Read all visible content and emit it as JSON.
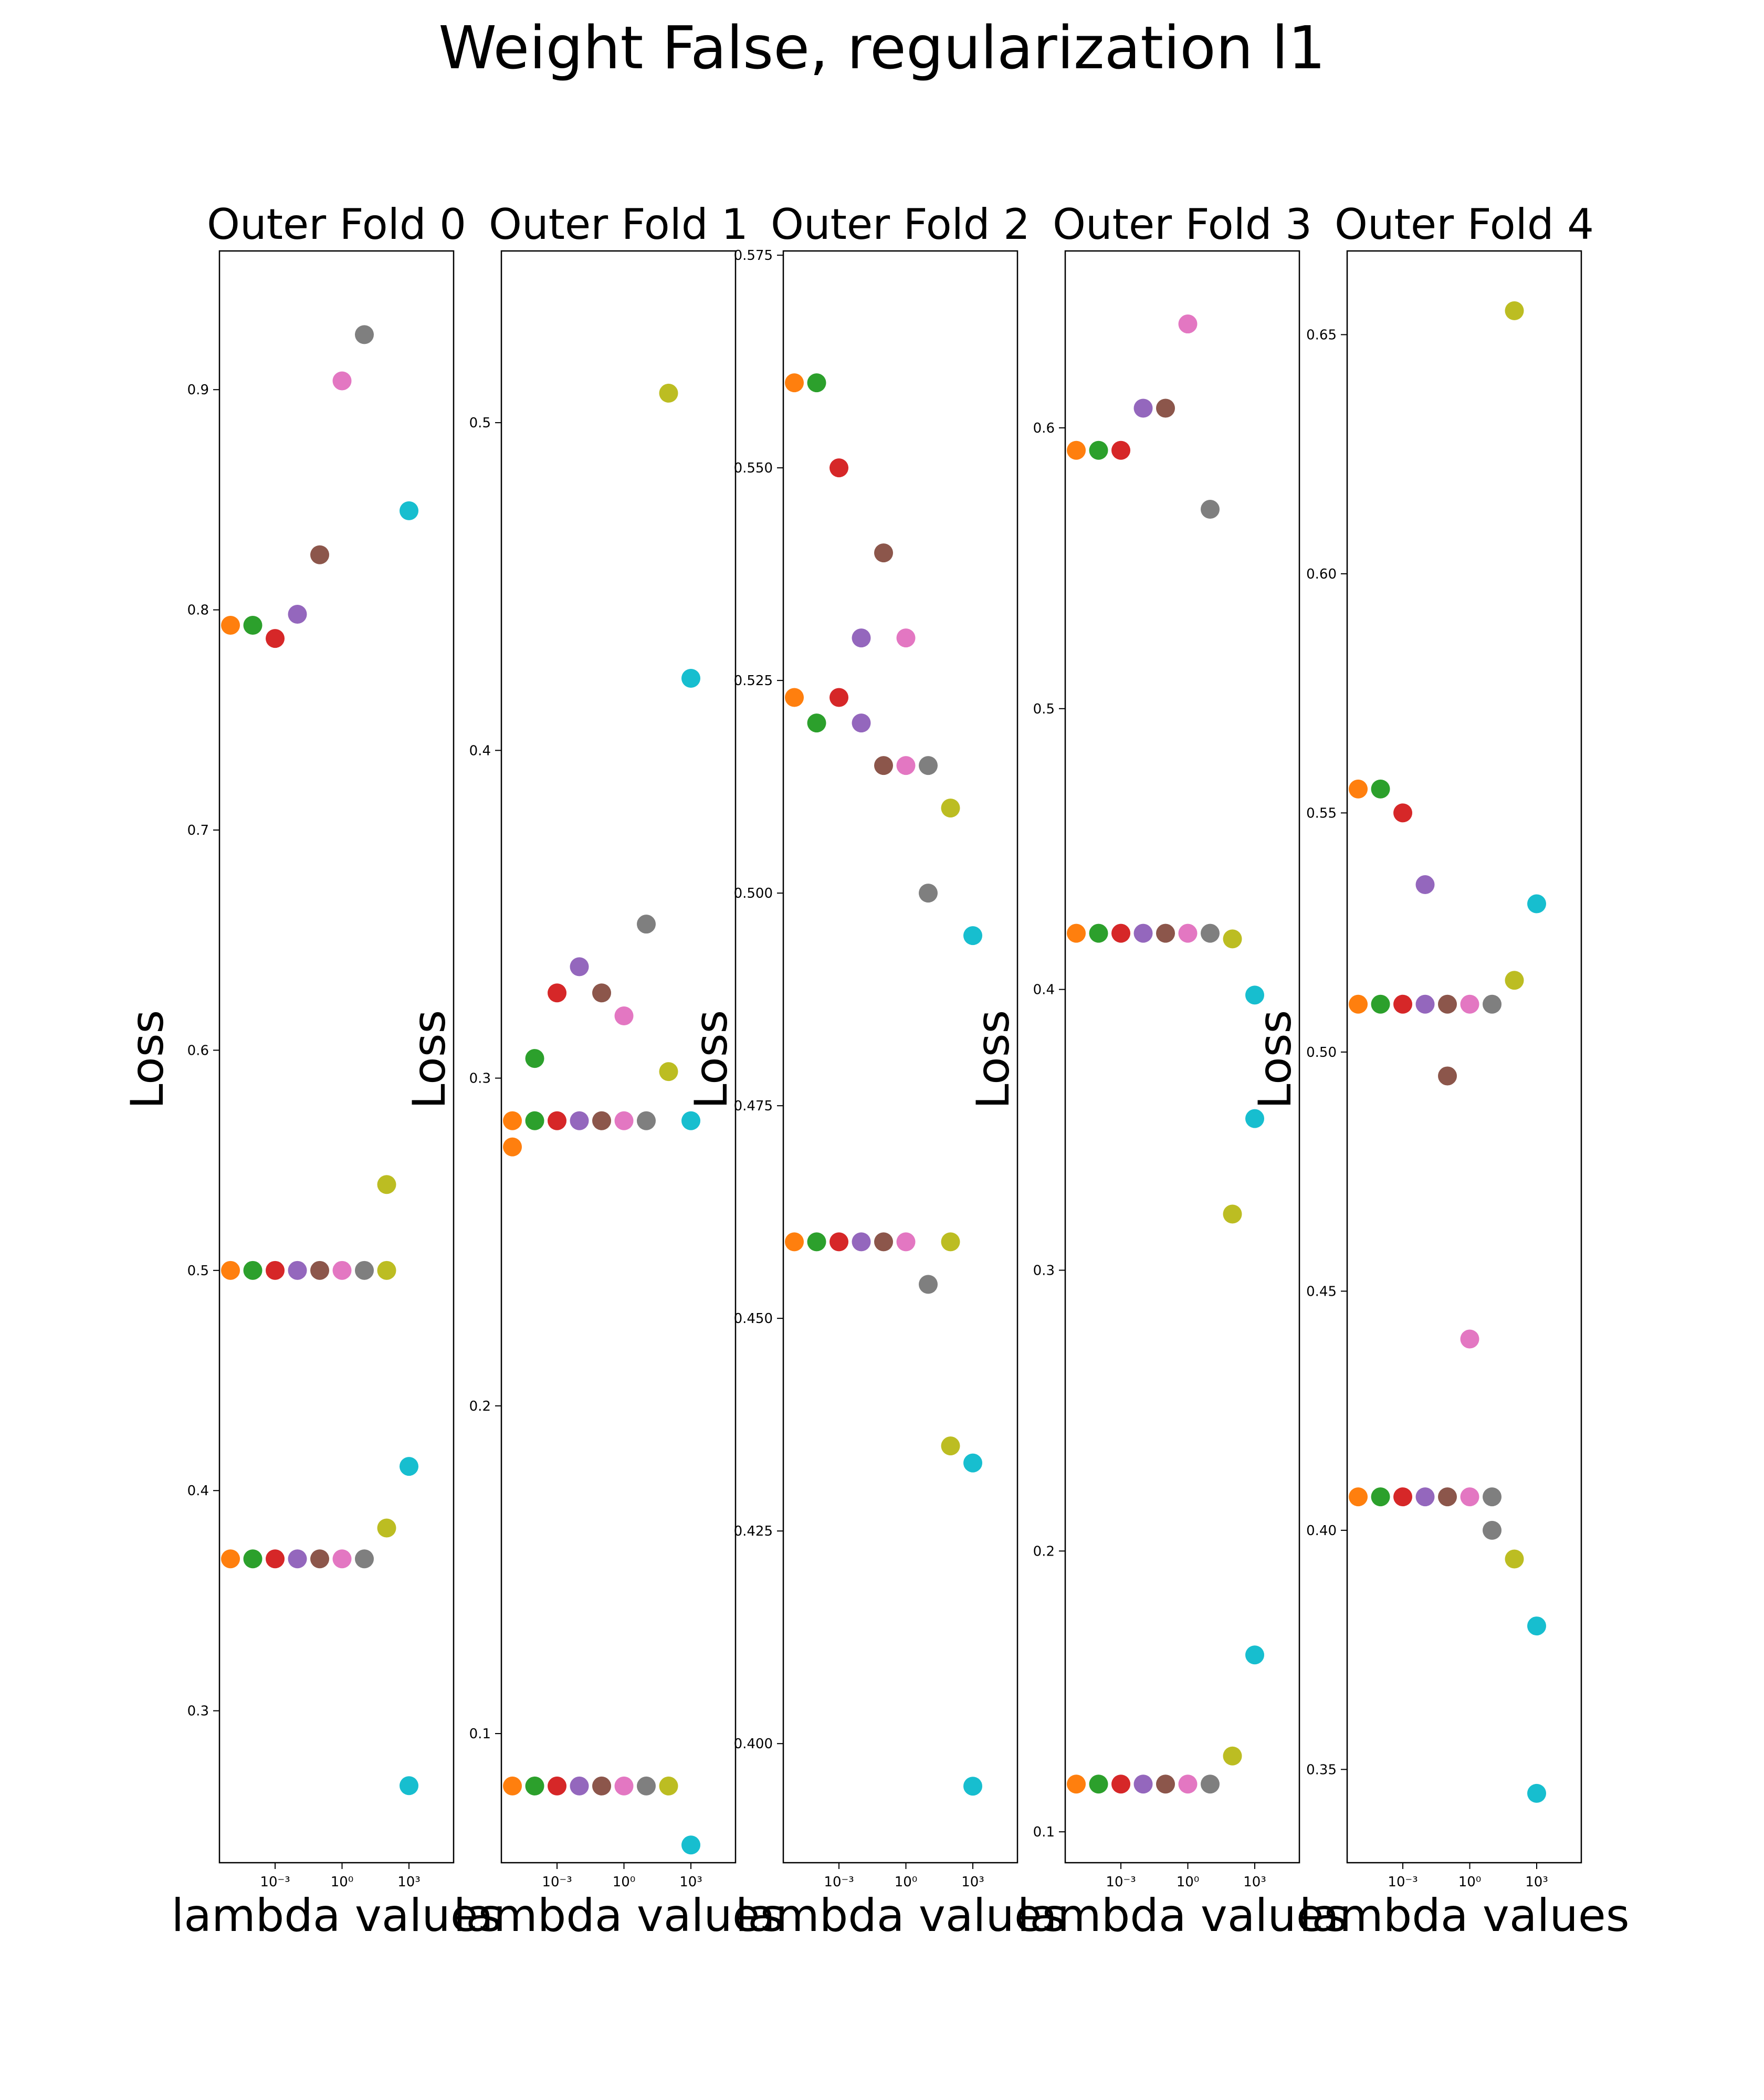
{
  "title": "Weight False, regularization l1",
  "colors": [
    "#ff7f0e",
    "#2ca02c",
    "#d62728",
    "#9467bd",
    "#8c564b",
    "#e377c2",
    "#7f7f7f",
    "#bcbd22",
    "#17becf"
  ],
  "chart_data": [
    {
      "type": "scatter",
      "title": "Outer Fold 0",
      "xlabel": "lambda values",
      "ylabel": "Loss",
      "xscale": "log",
      "xlim": [
        3.2e-06,
        100000.0
      ],
      "ylim": [
        0.231,
        0.963
      ],
      "xticks": [
        {
          "value": 0.001,
          "label": "10⁻³"
        },
        {
          "value": 1,
          "label": "10⁰"
        },
        {
          "value": 1000,
          "label": "10³"
        }
      ],
      "yticks": [
        {
          "value": 0.3,
          "label": "0.3"
        },
        {
          "value": 0.4,
          "label": "0.4"
        },
        {
          "value": 0.5,
          "label": "0.5"
        },
        {
          "value": 0.6,
          "label": "0.6"
        },
        {
          "value": 0.7,
          "label": "0.7"
        },
        {
          "value": 0.8,
          "label": "0.8"
        },
        {
          "value": 0.9,
          "label": "0.9"
        }
      ],
      "points": [
        {
          "x": 1e-05,
          "y": 0.793,
          "color": "#ff7f0e"
        },
        {
          "x": 0.0001,
          "y": 0.793,
          "color": "#2ca02c"
        },
        {
          "x": 0.001,
          "y": 0.787,
          "color": "#d62728"
        },
        {
          "x": 0.01,
          "y": 0.798,
          "color": "#9467bd"
        },
        {
          "x": 0.1,
          "y": 0.825,
          "color": "#8c564b"
        },
        {
          "x": 1,
          "y": 0.904,
          "color": "#e377c2"
        },
        {
          "x": 10,
          "y": 0.925,
          "color": "#7f7f7f"
        },
        {
          "x": 100,
          "y": 0.539,
          "color": "#bcbd22"
        },
        {
          "x": 1000,
          "y": 0.845,
          "color": "#17becf"
        },
        {
          "x": 1e-05,
          "y": 0.5,
          "color": "#ff7f0e"
        },
        {
          "x": 0.0001,
          "y": 0.5,
          "color": "#2ca02c"
        },
        {
          "x": 0.001,
          "y": 0.5,
          "color": "#d62728"
        },
        {
          "x": 0.01,
          "y": 0.5,
          "color": "#9467bd"
        },
        {
          "x": 0.1,
          "y": 0.5,
          "color": "#8c564b"
        },
        {
          "x": 1,
          "y": 0.5,
          "color": "#e377c2"
        },
        {
          "x": 10,
          "y": 0.5,
          "color": "#7f7f7f"
        },
        {
          "x": 100,
          "y": 0.5,
          "color": "#bcbd22"
        },
        {
          "x": 1000,
          "y": 0.411,
          "color": "#17becf"
        },
        {
          "x": 1e-05,
          "y": 0.369,
          "color": "#ff7f0e"
        },
        {
          "x": 0.0001,
          "y": 0.369,
          "color": "#2ca02c"
        },
        {
          "x": 0.001,
          "y": 0.369,
          "color": "#d62728"
        },
        {
          "x": 0.01,
          "y": 0.369,
          "color": "#9467bd"
        },
        {
          "x": 0.1,
          "y": 0.369,
          "color": "#8c564b"
        },
        {
          "x": 1,
          "y": 0.369,
          "color": "#e377c2"
        },
        {
          "x": 10,
          "y": 0.369,
          "color": "#7f7f7f"
        },
        {
          "x": 100,
          "y": 0.383,
          "color": "#bcbd22"
        },
        {
          "x": 1000,
          "y": 0.266,
          "color": "#17becf"
        }
      ]
    },
    {
      "type": "scatter",
      "title": "Outer Fold 1",
      "xlabel": "lambda values",
      "ylabel": "Loss",
      "xscale": "log",
      "xlim": [
        3.2e-06,
        100000.0
      ],
      "ylim": [
        0.0606,
        0.5524
      ],
      "xticks": [
        {
          "value": 0.001,
          "label": "10⁻³"
        },
        {
          "value": 1,
          "label": "10⁰"
        },
        {
          "value": 1000,
          "label": "10³"
        }
      ],
      "yticks": [
        {
          "value": 0.1,
          "label": "0.1"
        },
        {
          "value": 0.2,
          "label": "0.2"
        },
        {
          "value": 0.3,
          "label": "0.3"
        },
        {
          "value": 0.4,
          "label": "0.4"
        },
        {
          "value": 0.5,
          "label": "0.5"
        }
      ],
      "points": [
        {
          "x": 1e-05,
          "y": 0.279,
          "color": "#ff7f0e"
        },
        {
          "x": 0.0001,
          "y": 0.306,
          "color": "#2ca02c"
        },
        {
          "x": 0.001,
          "y": 0.326,
          "color": "#d62728"
        },
        {
          "x": 0.01,
          "y": 0.334,
          "color": "#9467bd"
        },
        {
          "x": 0.1,
          "y": 0.326,
          "color": "#8c564b"
        },
        {
          "x": 1,
          "y": 0.319,
          "color": "#e377c2"
        },
        {
          "x": 10,
          "y": 0.347,
          "color": "#7f7f7f"
        },
        {
          "x": 100,
          "y": 0.302,
          "color": "#bcbd22"
        },
        {
          "x": 1000,
          "y": 0.422,
          "color": "#17becf"
        },
        {
          "x": 1e-05,
          "y": 0.287,
          "color": "#ff7f0e"
        },
        {
          "x": 0.0001,
          "y": 0.287,
          "color": "#2ca02c"
        },
        {
          "x": 0.001,
          "y": 0.287,
          "color": "#d62728"
        },
        {
          "x": 0.01,
          "y": 0.287,
          "color": "#9467bd"
        },
        {
          "x": 0.1,
          "y": 0.287,
          "color": "#8c564b"
        },
        {
          "x": 1,
          "y": 0.287,
          "color": "#e377c2"
        },
        {
          "x": 10,
          "y": 0.287,
          "color": "#7f7f7f"
        },
        {
          "x": 100,
          "y": 0.509,
          "color": "#bcbd22"
        },
        {
          "x": 1000,
          "y": 0.287,
          "color": "#17becf"
        },
        {
          "x": 1e-05,
          "y": 0.084,
          "color": "#ff7f0e"
        },
        {
          "x": 0.0001,
          "y": 0.084,
          "color": "#2ca02c"
        },
        {
          "x": 0.001,
          "y": 0.084,
          "color": "#d62728"
        },
        {
          "x": 0.01,
          "y": 0.084,
          "color": "#9467bd"
        },
        {
          "x": 0.1,
          "y": 0.084,
          "color": "#8c564b"
        },
        {
          "x": 1,
          "y": 0.084,
          "color": "#e377c2"
        },
        {
          "x": 10,
          "y": 0.084,
          "color": "#7f7f7f"
        },
        {
          "x": 100,
          "y": 0.084,
          "color": "#bcbd22"
        },
        {
          "x": 1000,
          "y": 0.066,
          "color": "#17becf"
        }
      ]
    },
    {
      "type": "scatter",
      "title": "Outer Fold 2",
      "xlabel": "lambda values",
      "ylabel": "Loss",
      "xscale": "log",
      "xlim": [
        3.2e-06,
        100000.0
      ],
      "ylim": [
        0.386,
        0.5755
      ],
      "xticks": [
        {
          "value": 0.001,
          "label": "10⁻³"
        },
        {
          "value": 1,
          "label": "10⁰"
        },
        {
          "value": 1000,
          "label": "10³"
        }
      ],
      "yticks": [
        {
          "value": 0.4,
          "label": "0.400"
        },
        {
          "value": 0.425,
          "label": "0.425"
        },
        {
          "value": 0.45,
          "label": "0.450"
        },
        {
          "value": 0.475,
          "label": "0.475"
        },
        {
          "value": 0.5,
          "label": "0.500"
        },
        {
          "value": 0.525,
          "label": "0.525"
        },
        {
          "value": 0.55,
          "label": "0.550"
        },
        {
          "value": 0.575,
          "label": "0.575"
        }
      ],
      "points": [
        {
          "x": 1e-05,
          "y": 0.56,
          "color": "#ff7f0e"
        },
        {
          "x": 0.0001,
          "y": 0.56,
          "color": "#2ca02c"
        },
        {
          "x": 0.001,
          "y": 0.55,
          "color": "#d62728"
        },
        {
          "x": 0.01,
          "y": 0.53,
          "color": "#9467bd"
        },
        {
          "x": 0.1,
          "y": 0.54,
          "color": "#8c564b"
        },
        {
          "x": 1,
          "y": 0.53,
          "color": "#e377c2"
        },
        {
          "x": 10,
          "y": 0.515,
          "color": "#7f7f7f"
        },
        {
          "x": 100,
          "y": 0.51,
          "color": "#bcbd22"
        },
        {
          "x": 1000,
          "y": 0.495,
          "color": "#17becf"
        },
        {
          "x": 1e-05,
          "y": 0.523,
          "color": "#ff7f0e"
        },
        {
          "x": 0.0001,
          "y": 0.52,
          "color": "#2ca02c"
        },
        {
          "x": 0.001,
          "y": 0.523,
          "color": "#d62728"
        },
        {
          "x": 0.01,
          "y": 0.52,
          "color": "#9467bd"
        },
        {
          "x": 0.1,
          "y": 0.515,
          "color": "#8c564b"
        },
        {
          "x": 1,
          "y": 0.515,
          "color": "#e377c2"
        },
        {
          "x": 10,
          "y": 0.5,
          "color": "#7f7f7f"
        },
        {
          "x": 100,
          "y": 0.459,
          "color": "#bcbd22"
        },
        {
          "x": 1000,
          "y": 0.433,
          "color": "#17becf"
        },
        {
          "x": 1e-05,
          "y": 0.459,
          "color": "#ff7f0e"
        },
        {
          "x": 0.0001,
          "y": 0.459,
          "color": "#2ca02c"
        },
        {
          "x": 0.001,
          "y": 0.459,
          "color": "#d62728"
        },
        {
          "x": 0.01,
          "y": 0.459,
          "color": "#9467bd"
        },
        {
          "x": 0.1,
          "y": 0.459,
          "color": "#8c564b"
        },
        {
          "x": 1,
          "y": 0.459,
          "color": "#e377c2"
        },
        {
          "x": 10,
          "y": 0.454,
          "color": "#7f7f7f"
        },
        {
          "x": 100,
          "y": 0.435,
          "color": "#bcbd22"
        },
        {
          "x": 1000,
          "y": 0.395,
          "color": "#17becf"
        }
      ]
    },
    {
      "type": "scatter",
      "title": "Outer Fold 3",
      "xlabel": "lambda values",
      "ylabel": "Loss",
      "xscale": "log",
      "xlim": [
        3.2e-06,
        100000.0
      ],
      "ylim": [
        0.089,
        0.663
      ],
      "xticks": [
        {
          "value": 0.001,
          "label": "10⁻³"
        },
        {
          "value": 1,
          "label": "10⁰"
        },
        {
          "value": 1000,
          "label": "10³"
        }
      ],
      "yticks": [
        {
          "value": 0.1,
          "label": "0.1"
        },
        {
          "value": 0.2,
          "label": "0.2"
        },
        {
          "value": 0.3,
          "label": "0.3"
        },
        {
          "value": 0.4,
          "label": "0.4"
        },
        {
          "value": 0.5,
          "label": "0.5"
        },
        {
          "value": 0.6,
          "label": "0.6"
        }
      ],
      "points": [
        {
          "x": 1e-05,
          "y": 0.592,
          "color": "#ff7f0e"
        },
        {
          "x": 0.0001,
          "y": 0.592,
          "color": "#2ca02c"
        },
        {
          "x": 0.001,
          "y": 0.592,
          "color": "#d62728"
        },
        {
          "x": 0.01,
          "y": 0.607,
          "color": "#9467bd"
        },
        {
          "x": 0.1,
          "y": 0.607,
          "color": "#8c564b"
        },
        {
          "x": 1,
          "y": 0.637,
          "color": "#e377c2"
        },
        {
          "x": 10,
          "y": 0.571,
          "color": "#7f7f7f"
        },
        {
          "x": 100,
          "y": 0.418,
          "color": "#bcbd22"
        },
        {
          "x": 1000,
          "y": 0.398,
          "color": "#17becf"
        },
        {
          "x": 1e-05,
          "y": 0.42,
          "color": "#ff7f0e"
        },
        {
          "x": 0.0001,
          "y": 0.42,
          "color": "#2ca02c"
        },
        {
          "x": 0.001,
          "y": 0.42,
          "color": "#d62728"
        },
        {
          "x": 0.01,
          "y": 0.42,
          "color": "#9467bd"
        },
        {
          "x": 0.1,
          "y": 0.42,
          "color": "#8c564b"
        },
        {
          "x": 1,
          "y": 0.42,
          "color": "#e377c2"
        },
        {
          "x": 10,
          "y": 0.42,
          "color": "#7f7f7f"
        },
        {
          "x": 100,
          "y": 0.32,
          "color": "#bcbd22"
        },
        {
          "x": 1000,
          "y": 0.354,
          "color": "#17becf"
        },
        {
          "x": 1e-05,
          "y": 0.117,
          "color": "#ff7f0e"
        },
        {
          "x": 0.0001,
          "y": 0.117,
          "color": "#2ca02c"
        },
        {
          "x": 0.001,
          "y": 0.117,
          "color": "#d62728"
        },
        {
          "x": 0.01,
          "y": 0.117,
          "color": "#9467bd"
        },
        {
          "x": 0.1,
          "y": 0.117,
          "color": "#8c564b"
        },
        {
          "x": 1,
          "y": 0.117,
          "color": "#e377c2"
        },
        {
          "x": 10,
          "y": 0.117,
          "color": "#7f7f7f"
        },
        {
          "x": 100,
          "y": 0.127,
          "color": "#bcbd22"
        },
        {
          "x": 1000,
          "y": 0.163,
          "color": "#17becf"
        }
      ]
    },
    {
      "type": "scatter",
      "title": "Outer Fold 4",
      "xlabel": "lambda values",
      "ylabel": "Loss",
      "xscale": "log",
      "xlim": [
        3.2e-06,
        100000.0
      ],
      "ylim": [
        0.3305,
        0.6675
      ],
      "xticks": [
        {
          "value": 0.001,
          "label": "10⁻³"
        },
        {
          "value": 1,
          "label": "10⁰"
        },
        {
          "value": 1000,
          "label": "10³"
        }
      ],
      "yticks": [
        {
          "value": 0.35,
          "label": "0.35"
        },
        {
          "value": 0.4,
          "label": "0.40"
        },
        {
          "value": 0.45,
          "label": "0.45"
        },
        {
          "value": 0.5,
          "label": "0.50"
        },
        {
          "value": 0.55,
          "label": "0.55"
        },
        {
          "value": 0.6,
          "label": "0.60"
        },
        {
          "value": 0.65,
          "label": "0.65"
        }
      ],
      "points": [
        {
          "x": 1e-05,
          "y": 0.555,
          "color": "#ff7f0e"
        },
        {
          "x": 0.0001,
          "y": 0.555,
          "color": "#2ca02c"
        },
        {
          "x": 0.001,
          "y": 0.55,
          "color": "#d62728"
        },
        {
          "x": 0.01,
          "y": 0.535,
          "color": "#9467bd"
        },
        {
          "x": 0.1,
          "y": 0.495,
          "color": "#8c564b"
        },
        {
          "x": 1,
          "y": 0.44,
          "color": "#e377c2"
        },
        {
          "x": 10,
          "y": 0.4,
          "color": "#7f7f7f"
        },
        {
          "x": 100,
          "y": 0.655,
          "color": "#bcbd22"
        },
        {
          "x": 1000,
          "y": 0.531,
          "color": "#17becf"
        },
        {
          "x": 1e-05,
          "y": 0.51,
          "color": "#ff7f0e"
        },
        {
          "x": 0.0001,
          "y": 0.51,
          "color": "#2ca02c"
        },
        {
          "x": 0.001,
          "y": 0.51,
          "color": "#d62728"
        },
        {
          "x": 0.01,
          "y": 0.51,
          "color": "#9467bd"
        },
        {
          "x": 0.1,
          "y": 0.51,
          "color": "#8c564b"
        },
        {
          "x": 1,
          "y": 0.51,
          "color": "#e377c2"
        },
        {
          "x": 10,
          "y": 0.51,
          "color": "#7f7f7f"
        },
        {
          "x": 100,
          "y": 0.515,
          "color": "#bcbd22"
        },
        {
          "x": 1000,
          "y": 0.38,
          "color": "#17becf"
        },
        {
          "x": 1e-05,
          "y": 0.407,
          "color": "#ff7f0e"
        },
        {
          "x": 0.0001,
          "y": 0.407,
          "color": "#2ca02c"
        },
        {
          "x": 0.001,
          "y": 0.407,
          "color": "#d62728"
        },
        {
          "x": 0.01,
          "y": 0.407,
          "color": "#9467bd"
        },
        {
          "x": 0.1,
          "y": 0.407,
          "color": "#8c564b"
        },
        {
          "x": 1,
          "y": 0.407,
          "color": "#e377c2"
        },
        {
          "x": 10,
          "y": 0.407,
          "color": "#7f7f7f"
        },
        {
          "x": 100,
          "y": 0.394,
          "color": "#bcbd22"
        },
        {
          "x": 1000,
          "y": 0.345,
          "color": "#17becf"
        }
      ]
    }
  ]
}
